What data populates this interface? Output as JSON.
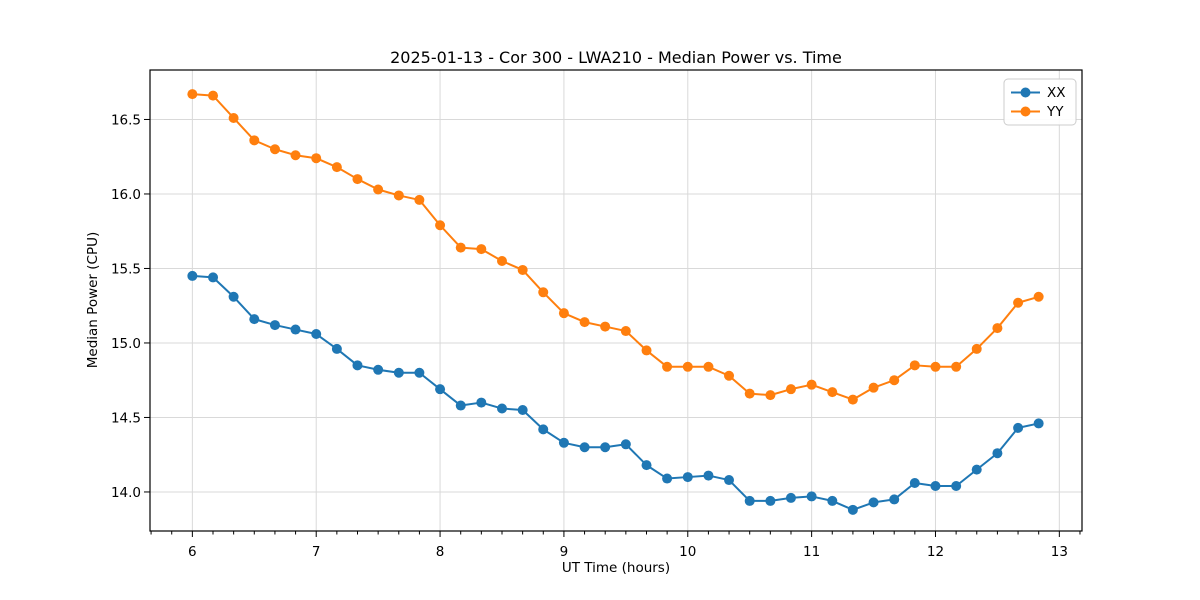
{
  "figure": {
    "background_color": "#ffffff"
  },
  "chart_data": {
    "type": "line",
    "title": "2025-01-13 - Cor 300 - LWA210 - Median Power vs. Time",
    "xlabel": "UT Time (hours)",
    "ylabel": "Median Power (CPU)",
    "xlim": [
      5.658,
      13.183
    ],
    "ylim": [
      13.738,
      16.832
    ],
    "grid": true,
    "grid_color": "#d9d9d9",
    "spine_color": "#000000",
    "legend_position": "upper right",
    "x_ticks": [
      6,
      7,
      8,
      9,
      10,
      11,
      12,
      13
    ],
    "x_tick_labels": [
      "6",
      "7",
      "8",
      "9",
      "10",
      "11",
      "12",
      "13"
    ],
    "x_minor_tick_step": 0.16667,
    "y_ticks": [
      14.0,
      14.5,
      15.0,
      15.5,
      16.0,
      16.5
    ],
    "y_tick_labels": [
      "14.0",
      "14.5",
      "15.0",
      "15.5",
      "16.0",
      "16.5"
    ],
    "x": [
      6.0,
      6.167,
      6.333,
      6.5,
      6.667,
      6.833,
      7.0,
      7.167,
      7.333,
      7.5,
      7.667,
      7.833,
      8.0,
      8.167,
      8.333,
      8.5,
      8.667,
      8.833,
      9.0,
      9.167,
      9.333,
      9.5,
      9.667,
      9.833,
      10.0,
      10.167,
      10.333,
      10.5,
      10.667,
      10.833,
      11.0,
      11.167,
      11.333,
      11.5,
      11.667,
      11.833,
      12.0,
      12.167,
      12.333,
      12.5,
      12.667,
      12.833
    ],
    "series": [
      {
        "name": "XX",
        "color": "#1f77b4",
        "values": [
          15.45,
          15.44,
          15.31,
          15.16,
          15.12,
          15.09,
          15.06,
          14.96,
          14.85,
          14.82,
          14.8,
          14.8,
          14.69,
          14.58,
          14.6,
          14.56,
          14.55,
          14.42,
          14.33,
          14.3,
          14.3,
          14.32,
          14.18,
          14.09,
          14.1,
          14.11,
          14.08,
          13.94,
          13.94,
          13.96,
          13.97,
          13.94,
          13.88,
          13.93,
          13.95,
          14.06,
          14.04,
          14.04,
          14.15,
          14.26,
          14.43,
          14.46
        ]
      },
      {
        "name": "YY",
        "color": "#ff7f0e",
        "values": [
          16.67,
          16.66,
          16.51,
          16.36,
          16.3,
          16.26,
          16.24,
          16.18,
          16.1,
          16.03,
          15.99,
          15.96,
          15.79,
          15.64,
          15.63,
          15.55,
          15.49,
          15.34,
          15.2,
          15.14,
          15.11,
          15.08,
          14.95,
          14.84,
          14.84,
          14.84,
          14.78,
          14.66,
          14.65,
          14.69,
          14.72,
          14.67,
          14.62,
          14.7,
          14.75,
          14.85,
          14.84,
          14.84,
          14.96,
          15.1,
          15.27,
          15.31
        ]
      }
    ]
  }
}
